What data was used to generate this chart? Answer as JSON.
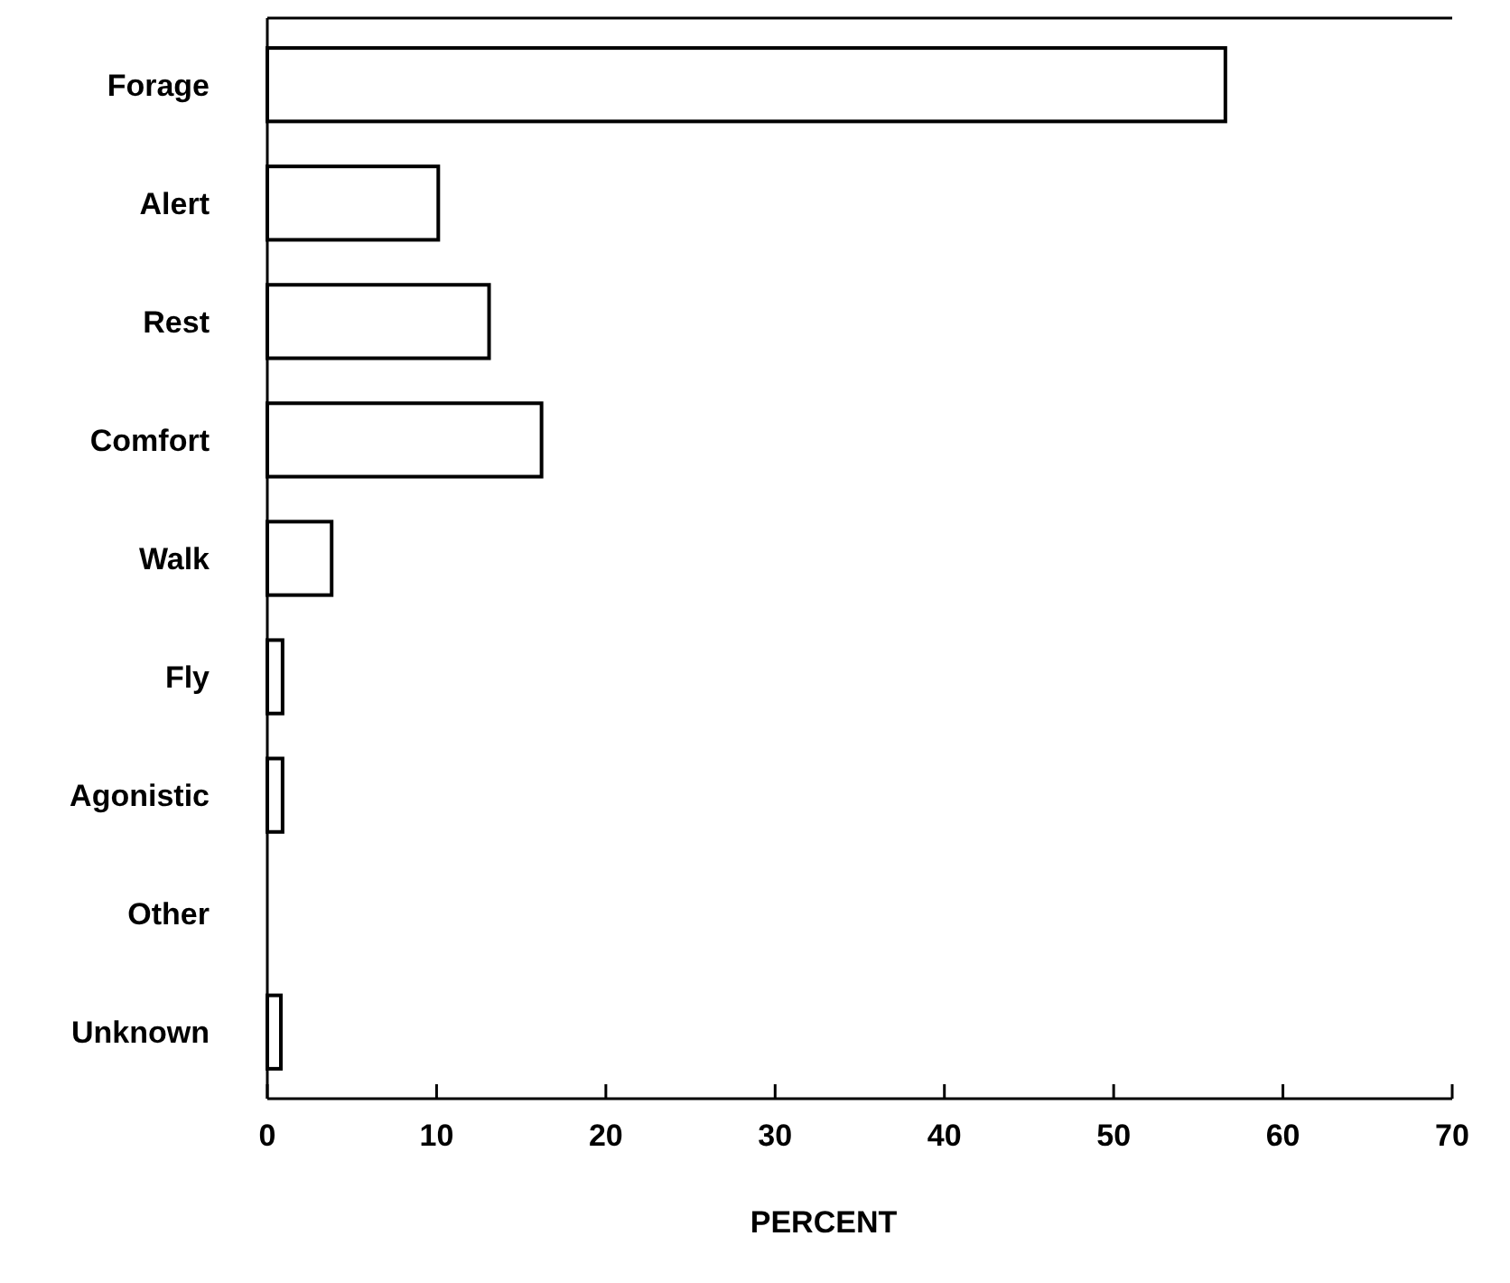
{
  "chart_data": {
    "type": "bar",
    "orientation": "horizontal",
    "xlabel": "PERCENT",
    "categories": [
      "Forage",
      "Alert",
      "Rest",
      "Comfort",
      "Walk",
      "Fly",
      "Agonistic",
      "Other",
      "Unknown"
    ],
    "values": [
      56.6,
      10.1,
      13.1,
      16.2,
      3.8,
      0.9,
      0.9,
      0,
      0.8
    ],
    "color": "#ffffff",
    "xlim": [
      0,
      70
    ],
    "xticks": [
      0,
      10,
      20,
      30,
      40,
      50,
      60,
      70
    ],
    "grid": false
  }
}
